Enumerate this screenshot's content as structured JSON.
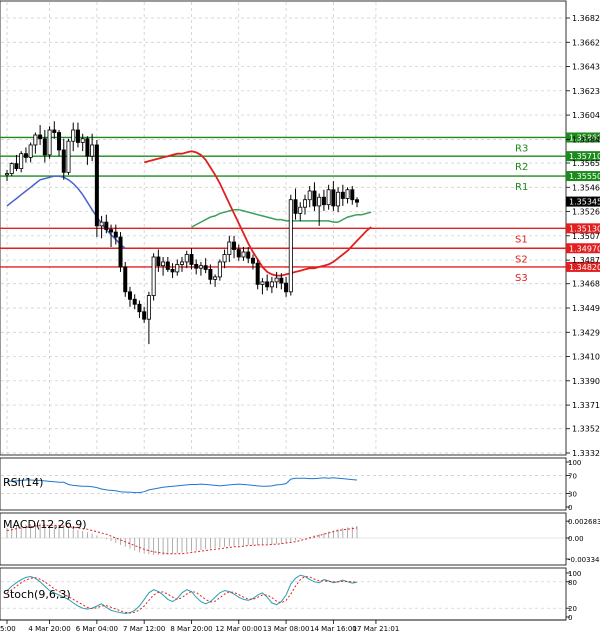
{
  "chart_data": {
    "type": "candlestick",
    "main": {
      "y_ticks": [
        "1.36820",
        "1.36625",
        "1.36430",
        "1.36235",
        "1.36040",
        "1.35845",
        "1.35655",
        "1.35460",
        "1.35265",
        "1.35070",
        "1.34875",
        "1.34685",
        "1.34490",
        "1.34295",
        "1.34100",
        "1.33905",
        "1.33710",
        "1.33520",
        "1.33325"
      ],
      "ylim": [
        1.3332,
        1.3692
      ],
      "current_price": "1.35345",
      "x_labels": [
        "5:00",
        "4 Mar 20:00",
        "6 Mar 04:00",
        "7 Mar 12:00",
        "8 Mar 20:00",
        "12 Mar 00:00",
        "13 Mar 08:00",
        "14 Mar 16:00",
        "17 Mar 21:01"
      ],
      "x_label_bars": [
        0,
        9,
        19,
        29,
        39,
        49,
        59,
        69,
        78
      ],
      "levels": [
        {
          "name": "R3",
          "value": 1.3586,
          "label": "1.35860",
          "color": "#1c8a1c"
        },
        {
          "name": "R2",
          "value": 1.3571,
          "label": "1.35710",
          "color": "#1c8a1c"
        },
        {
          "name": "R1",
          "value": 1.3555,
          "label": "1.35550",
          "color": "#1c8a1c"
        },
        {
          "name": "S1",
          "value": 1.3513,
          "label": "1.35130",
          "color": "#e02020"
        },
        {
          "name": "S2",
          "value": 1.3497,
          "label": "1.34970",
          "color": "#e02020"
        },
        {
          "name": "S3",
          "value": 1.3482,
          "label": "1.34820",
          "color": "#e02020"
        }
      ],
      "ohlc": [
        [
          1.3556,
          1.356,
          1.3551,
          1.3557
        ],
        [
          1.3557,
          1.3566,
          1.3555,
          1.3565
        ],
        [
          1.3565,
          1.3572,
          1.3559,
          1.3561
        ],
        [
          1.3561,
          1.3575,
          1.3558,
          1.3573
        ],
        [
          1.3573,
          1.3578,
          1.3566,
          1.357
        ],
        [
          1.357,
          1.3582,
          1.3566,
          1.358
        ],
        [
          1.358,
          1.359,
          1.3573,
          1.3588
        ],
        [
          1.3588,
          1.3596,
          1.358,
          1.3585
        ],
        [
          1.3585,
          1.3592,
          1.3566,
          1.3572
        ],
        [
          1.3572,
          1.3595,
          1.3569,
          1.3592
        ],
        [
          1.3592,
          1.3599,
          1.3585,
          1.359
        ],
        [
          1.359,
          1.3592,
          1.3571,
          1.3576
        ],
        [
          1.3576,
          1.3585,
          1.3552,
          1.3558
        ],
        [
          1.3558,
          1.3585,
          1.3556,
          1.3583
        ],
        [
          1.3583,
          1.3598,
          1.3575,
          1.3592
        ],
        [
          1.3592,
          1.3598,
          1.3578,
          1.3582
        ],
        [
          1.3582,
          1.3589,
          1.3575,
          1.3585
        ],
        [
          1.3585,
          1.3587,
          1.3564,
          1.3571
        ],
        [
          1.3571,
          1.3589,
          1.3567,
          1.358
        ],
        [
          1.358,
          1.3584,
          1.3506,
          1.3515
        ],
        [
          1.3515,
          1.3523,
          1.3505,
          1.3518
        ],
        [
          1.3518,
          1.3524,
          1.3509,
          1.3512
        ],
        [
          1.3512,
          1.3516,
          1.3498,
          1.351
        ],
        [
          1.351,
          1.3516,
          1.35,
          1.3506
        ],
        [
          1.3506,
          1.351,
          1.3478,
          1.3482
        ],
        [
          1.3482,
          1.3486,
          1.3458,
          1.3462
        ],
        [
          1.3462,
          1.3466,
          1.345,
          1.3456
        ],
        [
          1.3456,
          1.346,
          1.3448,
          1.3452
        ],
        [
          1.3452,
          1.3455,
          1.3441,
          1.3446
        ],
        [
          1.3446,
          1.345,
          1.3437,
          1.344
        ],
        [
          1.344,
          1.3462,
          1.342,
          1.3459
        ],
        [
          1.3459,
          1.3493,
          1.3455,
          1.349
        ],
        [
          1.349,
          1.3496,
          1.3478,
          1.3483
        ],
        [
          1.3483,
          1.349,
          1.3475,
          1.3486
        ],
        [
          1.3486,
          1.349,
          1.3478,
          1.348
        ],
        [
          1.348,
          1.3485,
          1.3473,
          1.3478
        ],
        [
          1.3478,
          1.3488,
          1.3475,
          1.3484
        ],
        [
          1.3484,
          1.349,
          1.3478,
          1.3486
        ],
        [
          1.3486,
          1.3495,
          1.3481,
          1.3492
        ],
        [
          1.3492,
          1.3497,
          1.348,
          1.3484
        ],
        [
          1.3484,
          1.3488,
          1.3476,
          1.3481
        ],
        [
          1.3481,
          1.3486,
          1.3475,
          1.3483
        ],
        [
          1.3483,
          1.3489,
          1.3477,
          1.348
        ],
        [
          1.348,
          1.3484,
          1.3468,
          1.3472
        ],
        [
          1.3472,
          1.3476,
          1.3466,
          1.3474
        ],
        [
          1.3474,
          1.3488,
          1.3471,
          1.3486
        ],
        [
          1.3486,
          1.3496,
          1.3481,
          1.3492
        ],
        [
          1.3492,
          1.3507,
          1.3486,
          1.3502
        ],
        [
          1.3502,
          1.3507,
          1.3489,
          1.3496
        ],
        [
          1.3496,
          1.35,
          1.3487,
          1.349
        ],
        [
          1.349,
          1.3498,
          1.3487,
          1.3494
        ],
        [
          1.3494,
          1.3498,
          1.3485,
          1.3489
        ],
        [
          1.3489,
          1.3492,
          1.348,
          1.3485
        ],
        [
          1.3485,
          1.3488,
          1.3464,
          1.3468
        ],
        [
          1.3468,
          1.3473,
          1.346,
          1.347
        ],
        [
          1.347,
          1.3476,
          1.3463,
          1.3466
        ],
        [
          1.3466,
          1.3474,
          1.3461,
          1.347
        ],
        [
          1.347,
          1.3478,
          1.3465,
          1.3473
        ],
        [
          1.3473,
          1.3477,
          1.3464,
          1.3469
        ],
        [
          1.3469,
          1.3474,
          1.3458,
          1.3462
        ],
        [
          1.3462,
          1.354,
          1.3459,
          1.3536
        ],
        [
          1.3536,
          1.3545,
          1.352,
          1.3525
        ],
        [
          1.3525,
          1.3534,
          1.3519,
          1.353
        ],
        [
          1.353,
          1.354,
          1.3524,
          1.3536
        ],
        [
          1.3536,
          1.3547,
          1.353,
          1.3543
        ],
        [
          1.3543,
          1.355,
          1.3527,
          1.3531
        ],
        [
          1.3531,
          1.3541,
          1.3515,
          1.3538
        ],
        [
          1.3538,
          1.3544,
          1.3527,
          1.3532
        ],
        [
          1.3532,
          1.3548,
          1.3528,
          1.3544
        ],
        [
          1.3544,
          1.3551,
          1.3527,
          1.3531
        ],
        [
          1.3531,
          1.3546,
          1.3526,
          1.3542
        ],
        [
          1.3542,
          1.3548,
          1.3531,
          1.3537
        ],
        [
          1.3537,
          1.3546,
          1.3533,
          1.3544
        ],
        [
          1.3544,
          1.3547,
          1.3532,
          1.3536
        ],
        [
          1.3536,
          1.3538,
          1.353,
          1.3534
        ]
      ],
      "ma_red": [
        1.3566,
        1.3567,
        1.3568,
        1.3569,
        1.357,
        1.3571,
        1.3572,
        1.3573,
        1.3573,
        1.3574,
        1.3575,
        1.3574,
        1.3572,
        1.3568,
        1.3562,
        1.3556,
        1.3549,
        1.3541,
        1.3533,
        1.3525,
        1.3517,
        1.3509,
        1.3501,
        1.3494,
        1.3488,
        1.3482,
        1.3478,
        1.3476,
        1.3475,
        1.3475,
        1.3476,
        1.3477,
        1.3478,
        1.3479,
        1.348,
        1.3481,
        1.3481,
        1.3482,
        1.3483,
        1.3484,
        1.3486,
        1.3489,
        1.3492,
        1.3495,
        1.3499,
        1.3503,
        1.3507,
        1.3511,
        1.3514
      ],
      "ma_red_start": 29,
      "ma_blue": [
        1.3531,
        1.3534,
        1.3537,
        1.354,
        1.3543,
        1.3546,
        1.3549,
        1.3552,
        1.3553,
        1.3554,
        1.3555,
        1.3555,
        1.3554,
        1.3552,
        1.3549,
        1.3545,
        1.354,
        1.3534,
        1.3528,
        1.3522,
        1.3517,
        1.3512,
        1.3508,
        1.3504,
        1.35,
        1.3497
      ],
      "ma_blue_start": 0,
      "ma_green": [
        1.3514,
        1.3516,
        1.3518,
        1.352,
        1.3522,
        1.3523,
        1.3525,
        1.3526,
        1.3527,
        1.3528,
        1.3528,
        1.3527,
        1.3526,
        1.3525,
        1.3524,
        1.3523,
        1.3522,
        1.3521,
        1.352,
        1.352,
        1.3519,
        1.3519,
        1.3519,
        1.3519,
        1.3519,
        1.3519,
        1.3519,
        1.3519,
        1.3519,
        1.3519,
        1.3518,
        1.3518,
        1.352,
        1.3522,
        1.3523,
        1.3524,
        1.3524,
        1.3525,
        1.3526
      ],
      "ma_green_start": 39
    },
    "rsi": {
      "label": "RSI(14)",
      "ticks": [
        "100",
        "70",
        "30",
        "0"
      ],
      "tick_values": [
        100,
        70,
        30,
        0
      ],
      "values": [
        58,
        57,
        58,
        59,
        60,
        60,
        59,
        59,
        58,
        57,
        56,
        55,
        55,
        50,
        48,
        47,
        46,
        46,
        45,
        43,
        40,
        38,
        37,
        36,
        34,
        33,
        33,
        32,
        32,
        34,
        38,
        40,
        42,
        44,
        45,
        46,
        47,
        48,
        49,
        50,
        50,
        51,
        50,
        49,
        48,
        47,
        48,
        49,
        50,
        51,
        50,
        49,
        48,
        47,
        46,
        46,
        47,
        49,
        50,
        52,
        62,
        64,
        64,
        64,
        63,
        63,
        64,
        65,
        64,
        65,
        64,
        63,
        62,
        61,
        60
      ]
    },
    "macd": {
      "label": "MACD(12,26,9)",
      "ticks": [
        "0.002683",
        "0.00",
        "-0.003346"
      ],
      "tick_values": [
        0.002683,
        0.0,
        -0.003346
      ],
      "hist": [
        0.0016,
        0.0018,
        0.0019,
        0.002,
        0.0021,
        0.0022,
        0.0023,
        0.0023,
        0.0022,
        0.0021,
        0.002,
        0.0019,
        0.0017,
        0.0015,
        0.0014,
        0.0013,
        0.0011,
        0.0009,
        0.0007,
        0.0004,
        0.0001,
        -0.0002,
        -0.0005,
        -0.0008,
        -0.0011,
        -0.0014,
        -0.0017,
        -0.002,
        -0.0023,
        -0.0025,
        -0.0026,
        -0.0027,
        -0.0027,
        -0.0027,
        -0.0026,
        -0.0025,
        -0.0024,
        -0.0023,
        -0.0022,
        -0.0021,
        -0.002,
        -0.0019,
        -0.0018,
        -0.0017,
        -0.0016,
        -0.0015,
        -0.0014,
        -0.0013,
        -0.0013,
        -0.0012,
        -0.0012,
        -0.0011,
        -0.0011,
        -0.0011,
        -0.0011,
        -0.001,
        -0.001,
        -0.0009,
        -0.0009,
        -0.0008,
        -0.0006,
        -0.0004,
        -0.0002,
        0.0,
        0.0002,
        0.0004,
        0.0006,
        0.0008,
        0.001,
        0.0012,
        0.0014,
        0.0016,
        0.0017,
        0.0018,
        0.0019
      ],
      "signal": [
        0.0012,
        0.0013,
        0.0015,
        0.0016,
        0.0017,
        0.0018,
        0.0019,
        0.002,
        0.002,
        0.002,
        0.002,
        0.002,
        0.0019,
        0.0018,
        0.0017,
        0.0016,
        0.0015,
        0.0014,
        0.0012,
        0.001,
        0.0008,
        0.0006,
        0.0003,
        0.0,
        -0.0003,
        -0.0006,
        -0.0009,
        -0.0012,
        -0.0015,
        -0.0018,
        -0.002,
        -0.0022,
        -0.0023,
        -0.0024,
        -0.0025,
        -0.0025,
        -0.0025,
        -0.0025,
        -0.0024,
        -0.0023,
        -0.0022,
        -0.0021,
        -0.002,
        -0.0019,
        -0.0018,
        -0.0017,
        -0.0016,
        -0.0015,
        -0.0014,
        -0.0014,
        -0.0013,
        -0.0012,
        -0.0012,
        -0.0011,
        -0.0011,
        -0.0011,
        -0.001,
        -0.001,
        -0.0009,
        -0.0008,
        -0.0007,
        -0.0006,
        -0.0004,
        -0.0002,
        0.0,
        0.0002,
        0.0004,
        0.0006,
        0.0008,
        0.001,
        0.0012,
        0.0013,
        0.0014,
        0.0015,
        0.0016
      ]
    },
    "stoch": {
      "label": "Stoch(9,6,3)",
      "ticks": [
        "100",
        "80",
        "20",
        "0"
      ],
      "tick_values": [
        100,
        80,
        20,
        0
      ],
      "k": [
        60,
        70,
        78,
        85,
        90,
        92,
        88,
        80,
        70,
        60,
        55,
        50,
        45,
        40,
        32,
        25,
        20,
        18,
        20,
        25,
        30,
        22,
        15,
        12,
        10,
        8,
        10,
        15,
        25,
        40,
        55,
        62,
        58,
        50,
        40,
        35,
        42,
        55,
        62,
        58,
        45,
        35,
        30,
        35,
        45,
        55,
        60,
        58,
        52,
        45,
        40,
        38,
        42,
        50,
        55,
        45,
        32,
        28,
        35,
        50,
        75,
        88,
        95,
        92,
        85,
        80,
        78,
        85,
        82,
        78,
        80,
        84,
        80,
        77,
        79
      ],
      "d": [
        55,
        62,
        70,
        78,
        84,
        88,
        89,
        86,
        80,
        72,
        64,
        58,
        52,
        46,
        40,
        34,
        28,
        22,
        19,
        21,
        25,
        26,
        22,
        18,
        14,
        11,
        9,
        11,
        16,
        25,
        38,
        50,
        56,
        57,
        52,
        45,
        40,
        44,
        52,
        58,
        56,
        48,
        40,
        34,
        36,
        44,
        52,
        57,
        56,
        51,
        45,
        41,
        40,
        45,
        50,
        50,
        44,
        36,
        32,
        38,
        52,
        70,
        85,
        92,
        91,
        86,
        82,
        82,
        81,
        80,
        80,
        81,
        81,
        80,
        79
      ]
    }
  }
}
